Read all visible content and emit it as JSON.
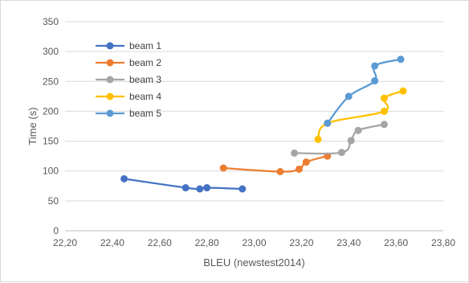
{
  "chart_data": {
    "type": "scatter",
    "title": "",
    "xlabel": "BLEU (newstest2014)",
    "ylabel": "Time (s)",
    "xlim": [
      22.2,
      23.8
    ],
    "ylim": [
      0,
      350
    ],
    "x_ticks": [
      "22,20",
      "22,40",
      "22,60",
      "22,80",
      "23,00",
      "23,20",
      "23,40",
      "23,60",
      "23,80"
    ],
    "y_ticks": [
      "0",
      "50",
      "100",
      "150",
      "200",
      "250",
      "300",
      "350"
    ],
    "grid": "horizontal",
    "legend_position": "top-left",
    "series": [
      {
        "name": "beam 1",
        "color": "#4472C4",
        "points": [
          [
            22.45,
            87
          ],
          [
            22.71,
            72
          ],
          [
            22.77,
            70
          ],
          [
            22.8,
            72
          ],
          [
            22.95,
            70
          ]
        ]
      },
      {
        "name": "beam 2",
        "color": "#ED7D31",
        "points": [
          [
            22.87,
            105
          ],
          [
            23.11,
            99
          ],
          [
            23.19,
            103
          ],
          [
            23.22,
            115
          ],
          [
            23.31,
            125
          ]
        ]
      },
      {
        "name": "beam 3",
        "color": "#A5A5A5",
        "points": [
          [
            23.17,
            130
          ],
          [
            23.37,
            131
          ],
          [
            23.41,
            151
          ],
          [
            23.44,
            168
          ],
          [
            23.55,
            178
          ]
        ]
      },
      {
        "name": "beam 4",
        "color": "#FFC000",
        "points": [
          [
            23.27,
            153
          ],
          [
            23.31,
            180
          ],
          [
            23.55,
            200
          ],
          [
            23.55,
            222
          ],
          [
            23.63,
            234
          ]
        ]
      },
      {
        "name": "beam 5",
        "color": "#5B9BD5",
        "points": [
          [
            23.31,
            180
          ],
          [
            23.4,
            225
          ],
          [
            23.51,
            251
          ],
          [
            23.51,
            276
          ],
          [
            23.62,
            287
          ]
        ]
      }
    ]
  }
}
